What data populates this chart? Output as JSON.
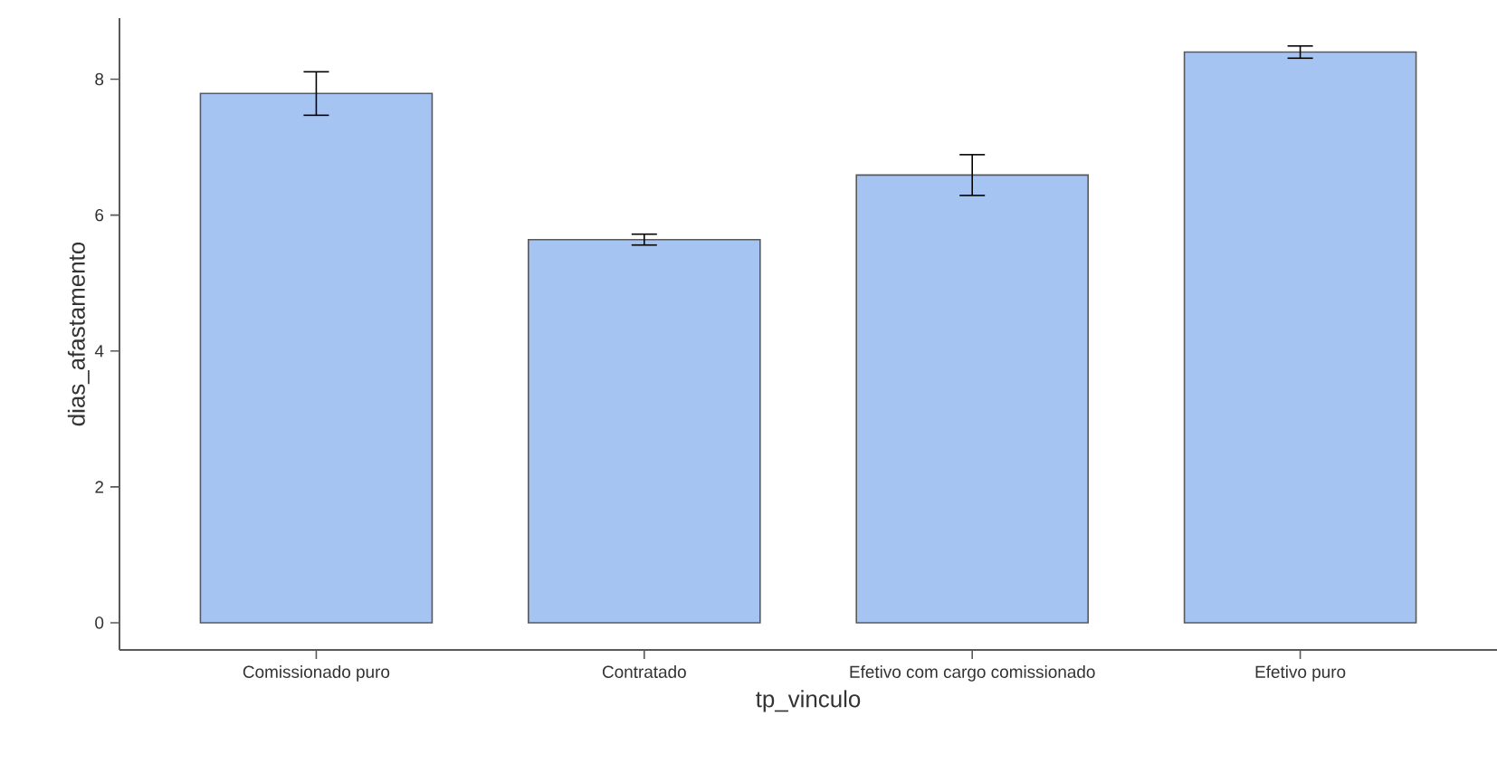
{
  "chart_data": {
    "type": "bar",
    "xlabel": "tp_vinculo",
    "ylabel": "dias_afastamento",
    "categories": [
      "Comissionado puro",
      "Contratado",
      "Efetivo com cargo comissionado",
      "Efetivo puro"
    ],
    "values": [
      7.79,
      5.64,
      6.59,
      8.4
    ],
    "errors": [
      0.32,
      0.08,
      0.3,
      0.09
    ],
    "color": "#a6c4f2",
    "ylim": [
      -0.4,
      8.9
    ],
    "yticks": [
      0,
      2,
      4,
      6,
      8
    ],
    "grid": false
  }
}
